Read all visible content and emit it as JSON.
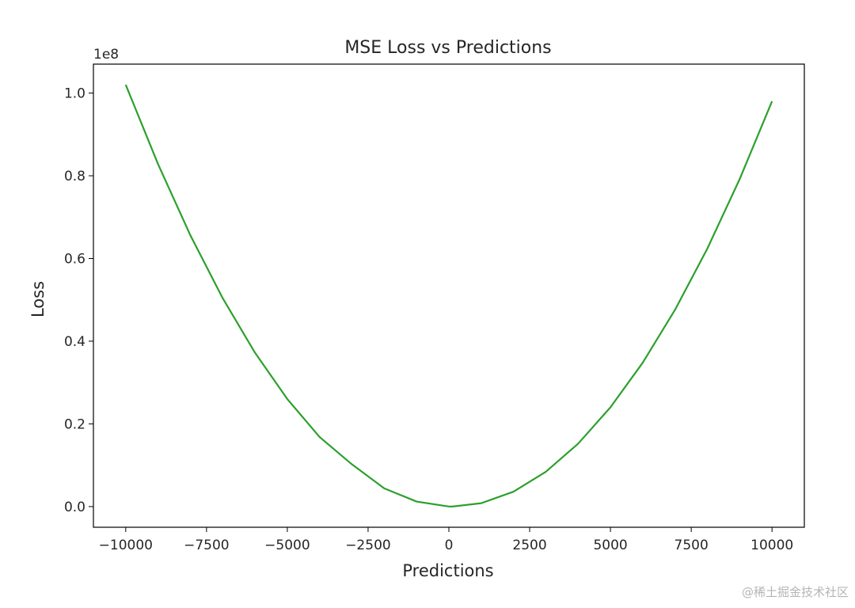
{
  "chart_data": {
    "type": "line",
    "title": "MSE Loss vs Predictions",
    "xlabel": "Predictions",
    "ylabel": "Loss",
    "y_offset_text": "1e8",
    "xlim": [
      -11000,
      11000
    ],
    "ylim": [
      -0.05,
      1.07
    ],
    "x_ticks": [
      -10000,
      -7500,
      -5000,
      -2500,
      0,
      2500,
      5000,
      7500,
      10000
    ],
    "x_tick_labels": [
      "−10000",
      "−7500",
      "−5000",
      "−2500",
      "0",
      "2500",
      "5000",
      "7500",
      "10000"
    ],
    "y_ticks": [
      0.0,
      0.2,
      0.4,
      0.6,
      0.8,
      1.0
    ],
    "y_tick_labels": [
      "0.0",
      "0.2",
      "0.4",
      "0.6",
      "0.8",
      "1.0"
    ],
    "grid": false,
    "series": [
      {
        "color": "#2ca02c",
        "x": [
          -10000,
          -9000,
          -8000,
          -7000,
          -6000,
          -5000,
          -4000,
          -3000,
          -2000,
          -1000,
          0,
          100,
          1000,
          2000,
          3000,
          4000,
          5000,
          6000,
          7000,
          8000,
          9000,
          10000
        ],
        "y": [
          1.0201,
          0.8281,
          0.6561,
          0.5041,
          0.3721,
          0.2601,
          0.1681,
          0.1021,
          0.0441,
          0.0121,
          0.0001,
          0.0,
          0.0081,
          0.0361,
          0.0841,
          0.1521,
          0.2401,
          0.3481,
          0.4761,
          0.6241,
          0.7921,
          0.9801
        ]
      }
    ]
  },
  "watermark": "@稀土掘金技术社区"
}
